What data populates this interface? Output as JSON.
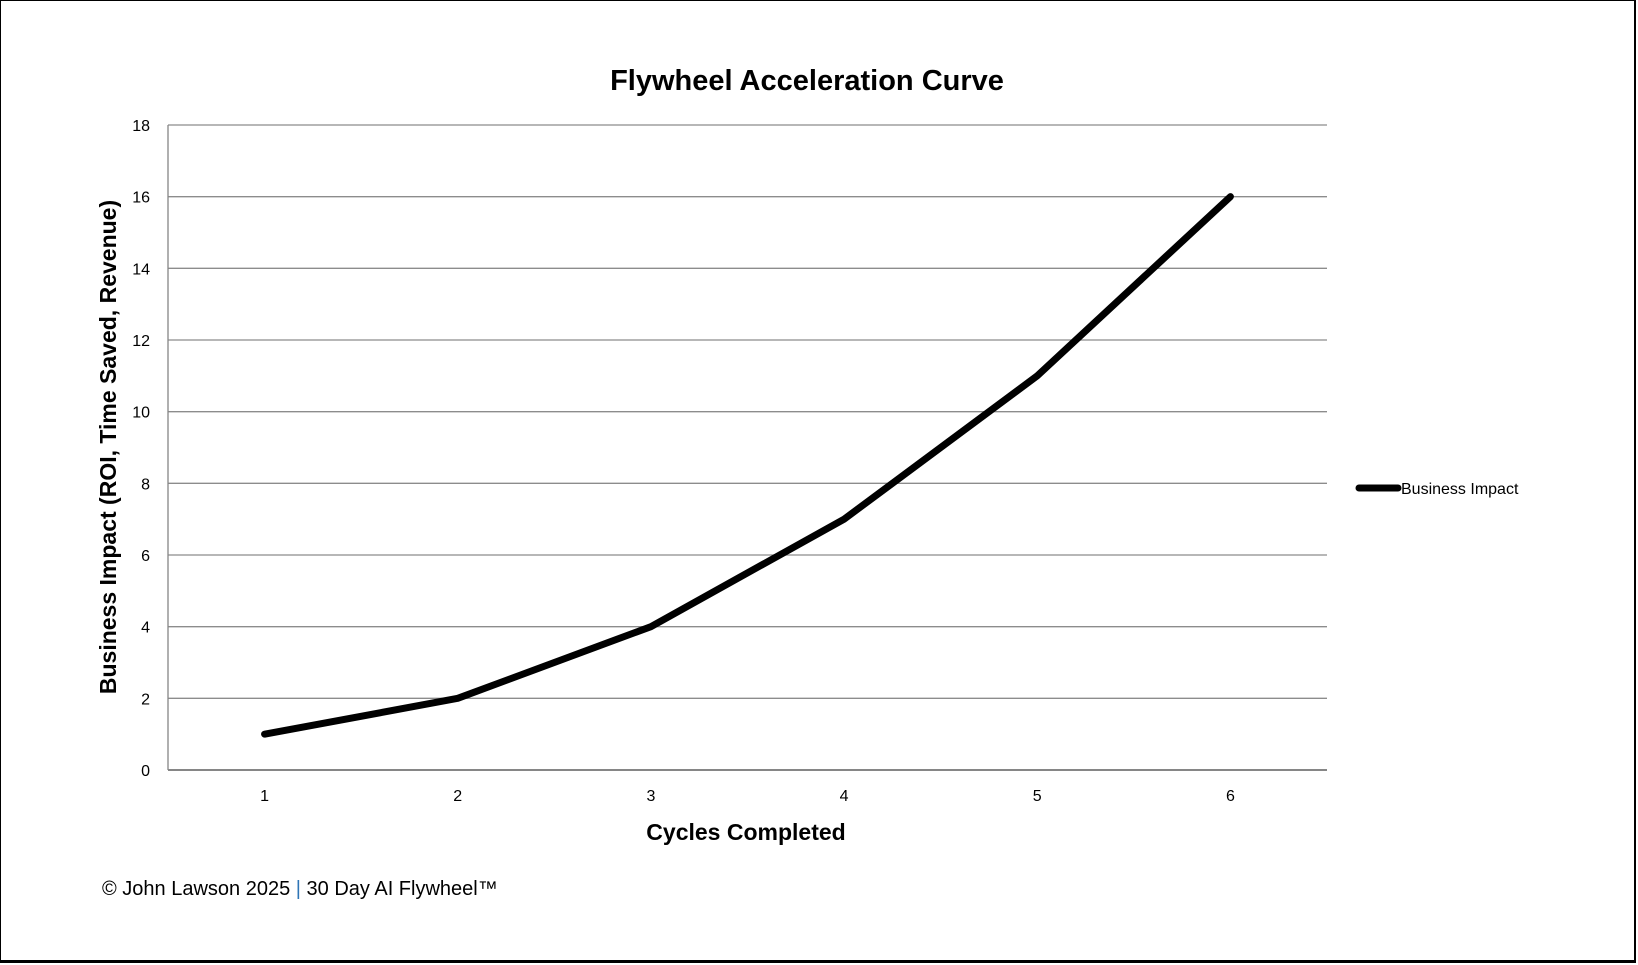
{
  "chart_data": {
    "type": "line",
    "title": "Flywheel Acceleration Curve",
    "xlabel": "Cycles Completed",
    "ylabel": "Business Impact (ROI, Time Saved, Revenue)",
    "categories": [
      "1",
      "2",
      "3",
      "4",
      "5",
      "6"
    ],
    "series": [
      {
        "name": "Business Impact",
        "values": [
          1,
          2,
          4,
          7,
          11,
          16
        ],
        "color": "#000000"
      }
    ],
    "ylim": [
      0,
      18
    ],
    "yticks": [
      "0",
      "2",
      "4",
      "6",
      "8",
      "10",
      "12",
      "14",
      "16",
      "18"
    ],
    "grid": true,
    "legend": "right"
  },
  "footer": {
    "left": "© John Lawson 2025",
    "separator": "|",
    "right": "30 Day AI Flywheel™"
  }
}
